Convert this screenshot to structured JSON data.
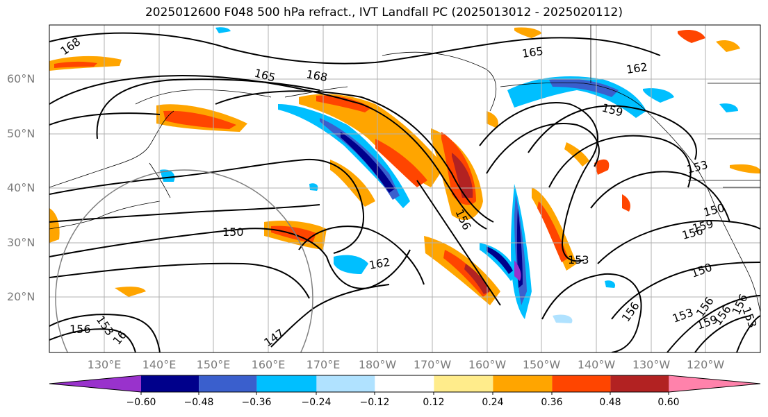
{
  "title": "2025012600 F048 500 hPa refract., IVT Landfall PC (2025013012 - 2025020112)",
  "lat_labels": [
    "60°N",
    "50°N",
    "40°N",
    "30°N",
    "20°N"
  ],
  "lon_labels": [
    "130°E",
    "140°E",
    "150°E",
    "160°E",
    "170°E",
    "180°W",
    "170°W",
    "160°W",
    "150°W",
    "140°W",
    "130°W",
    "120°W"
  ],
  "contour_labels": [
    "168",
    "165",
    "168",
    "165",
    "162",
    "159",
    "153",
    "156",
    "153",
    "150",
    "162",
    "150",
    "156",
    "156",
    "159",
    "150",
    "156",
    "153",
    "156",
    "156",
    "153",
    "159",
    "147",
    "156",
    "153",
    "16"
  ],
  "colorbar": {
    "ticks": [
      "−0.60",
      "−0.48",
      "−0.36",
      "−0.24",
      "−0.12",
      "0.12",
      "0.24",
      "0.36",
      "0.48",
      "0.60"
    ],
    "colors": [
      "#9932cc",
      "#00008b",
      "#3a5fcd",
      "#00bfff",
      "#b0e2ff",
      "#ffffff",
      "#ffec8b",
      "#ffa500",
      "#ff4500",
      "#b22222",
      "#ff82ab"
    ]
  }
}
